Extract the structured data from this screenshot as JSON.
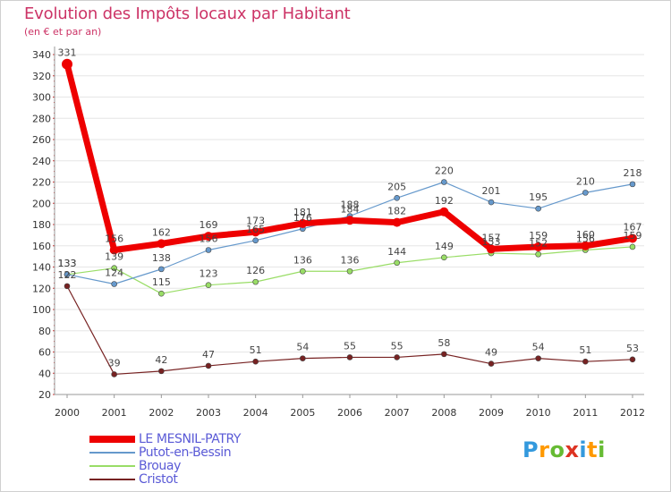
{
  "title": "Evolution des Impôts locaux par Habitant",
  "subtitle": "(en € et par an)",
  "chart_data": {
    "type": "line",
    "title": "Evolution des Impôts locaux par Habitant",
    "subtitle": "(en € et par an)",
    "xlabel": "",
    "ylabel": "",
    "categories": [
      "2000",
      "2001",
      "2002",
      "2003",
      "2004",
      "2005",
      "2006",
      "2007",
      "2008",
      "2009",
      "2010",
      "2011",
      "2012"
    ],
    "ylim": [
      20,
      340
    ],
    "yticks": [
      20,
      40,
      60,
      80,
      100,
      120,
      140,
      160,
      180,
      200,
      220,
      240,
      260,
      280,
      300,
      320,
      340
    ],
    "grid": "horizontal",
    "legend_position": "bottom-left",
    "series": [
      {
        "name": "LE MESNIL-PATRY",
        "color": "#ee0000",
        "width": 7,
        "values": [
          331,
          156,
          162,
          169,
          173,
          181,
          184,
          182,
          192,
          157,
          159,
          160,
          167
        ]
      },
      {
        "name": "Putot-en-Bessin",
        "color": "#6699cc",
        "width": 1.2,
        "values": [
          133,
          124,
          138,
          156,
          165,
          176,
          188,
          205,
          220,
          201,
          195,
          210,
          218
        ]
      },
      {
        "name": "Brouay",
        "color": "#99dd66",
        "width": 1.2,
        "values": [
          133,
          139,
          115,
          123,
          126,
          136,
          136,
          144,
          149,
          153,
          152,
          156,
          159
        ]
      },
      {
        "name": "Cristot",
        "color": "#772222",
        "width": 1.2,
        "values": [
          122,
          39,
          42,
          47,
          51,
          54,
          55,
          55,
          58,
          49,
          54,
          51,
          53
        ]
      }
    ]
  },
  "legend": [
    {
      "label": "LE MESNIL-PATRY",
      "color": "#ee0000",
      "thickness": 8
    },
    {
      "label": "Putot-en-Bessin",
      "color": "#6699cc",
      "thickness": 2
    },
    {
      "label": "Brouay",
      "color": "#99dd66",
      "thickness": 2
    },
    {
      "label": "Cristot",
      "color": "#772222",
      "thickness": 2
    }
  ],
  "logo": {
    "letters": [
      "P",
      "r",
      "o",
      "x",
      "i",
      "t",
      "i"
    ],
    "colors": [
      "#3399dd",
      "#ff9900",
      "#66bb33",
      "#dd3322",
      "#3399dd",
      "#ff9900",
      "#66bb33"
    ]
  }
}
